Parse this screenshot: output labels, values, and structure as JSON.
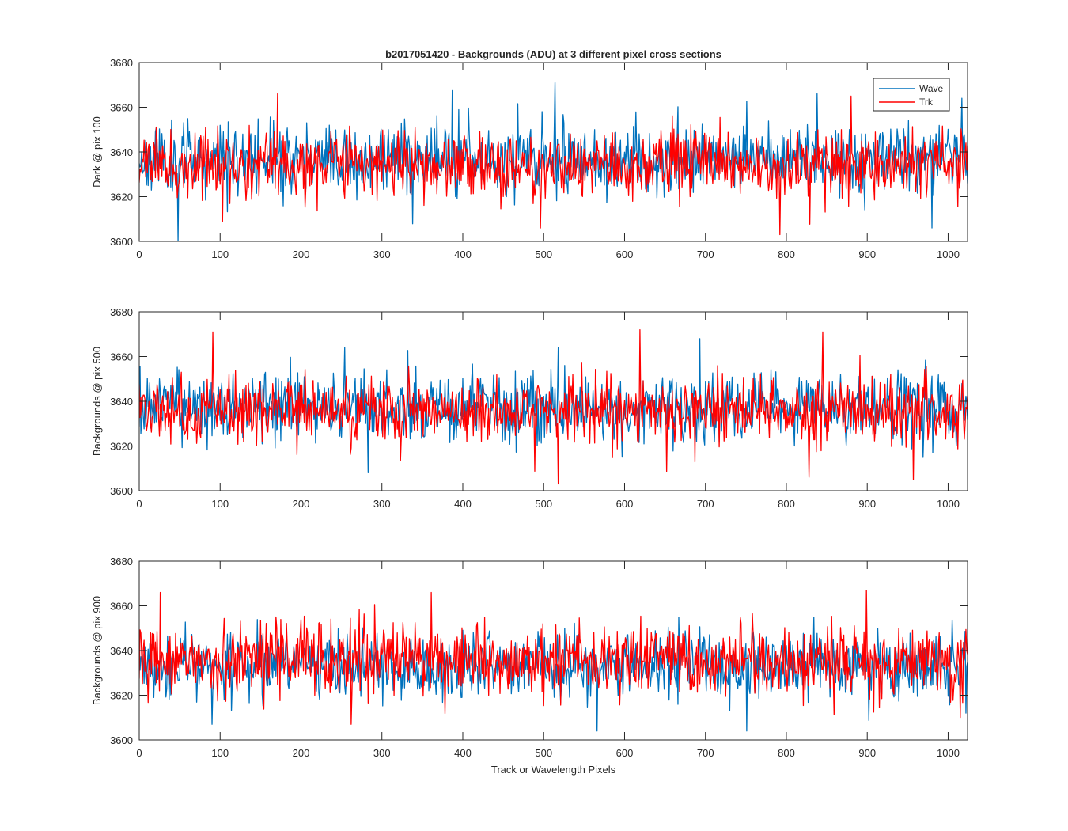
{
  "chart_data": [
    {
      "type": "line",
      "title": "b2017051420 - Backgrounds (ADU) at 3 different pixel cross sections",
      "xlabel": "",
      "ylabel": "Dark @ pix 100",
      "xlim": [
        0,
        1024
      ],
      "ylim": [
        3600,
        3680
      ],
      "x_ticks": [
        "0",
        "100",
        "200",
        "300",
        "400",
        "500",
        "600",
        "700",
        "800",
        "900",
        "1000"
      ],
      "y_ticks": [
        "3600",
        "3620",
        "3640",
        "3660",
        "3680"
      ],
      "legend": {
        "position": "top-right",
        "entries": [
          "Wave",
          "Trk"
        ]
      },
      "series": [
        {
          "name": "Wave",
          "color": "#0072BD",
          "mean": 3637,
          "std": 7.5,
          "seed": 11,
          "extremes": [
            [
              48,
              3600
            ],
            [
              514,
              3671
            ],
            [
              1017,
              3664
            ],
            [
              980,
              3606
            ],
            [
              838,
              3666
            ]
          ]
        },
        {
          "name": "Trk",
          "color": "#FF0000",
          "mean": 3634,
          "std": 7.0,
          "seed": 23,
          "extremes": [
            [
              171,
              3666
            ],
            [
              496,
              3606
            ],
            [
              792,
              3603
            ],
            [
              880,
              3665
            ],
            [
              103,
              3609
            ]
          ]
        }
      ]
    },
    {
      "type": "line",
      "title": "",
      "xlabel": "",
      "ylabel": "Backgrounds @ pix 500",
      "xlim": [
        0,
        1024
      ],
      "ylim": [
        3600,
        3680
      ],
      "x_ticks": [
        "0",
        "100",
        "200",
        "300",
        "400",
        "500",
        "600",
        "700",
        "800",
        "900",
        "1000"
      ],
      "y_ticks": [
        "3600",
        "3620",
        "3640",
        "3660",
        "3680"
      ],
      "series": [
        {
          "name": "Wave",
          "color": "#0072BD",
          "mean": 3637,
          "std": 7.5,
          "seed": 37,
          "extremes": [
            [
              254,
              3664
            ],
            [
              518,
              3664
            ],
            [
              693,
              3668
            ],
            [
              283,
              3608
            ],
            [
              1010,
              3620
            ]
          ]
        },
        {
          "name": "Trk",
          "color": "#FF0000",
          "mean": 3636,
          "std": 7.0,
          "seed": 41,
          "extremes": [
            [
              91,
              3671
            ],
            [
              619,
              3672
            ],
            [
              845,
              3671
            ],
            [
              518,
              3603
            ],
            [
              957,
              3605
            ],
            [
              828,
              3606
            ]
          ]
        }
      ]
    },
    {
      "type": "line",
      "title": "",
      "xlabel": "Track or Wavelength Pixels",
      "ylabel": "Backgrounds @ pix 900",
      "xlim": [
        0,
        1024
      ],
      "ylim": [
        3600,
        3680
      ],
      "x_ticks": [
        "0",
        "100",
        "200",
        "300",
        "400",
        "500",
        "600",
        "700",
        "800",
        "900",
        "1000"
      ],
      "y_ticks": [
        "3600",
        "3620",
        "3640",
        "3660",
        "3680"
      ],
      "series": [
        {
          "name": "Wave",
          "color": "#0072BD",
          "mean": 3633,
          "std": 7.0,
          "seed": 53,
          "extremes": [
            [
              566,
              3604
            ],
            [
              751,
              3604
            ],
            [
              90,
              3607
            ],
            [
              1022,
              3612
            ]
          ]
        },
        {
          "name": "Trk",
          "color": "#FF0000",
          "mean": 3635,
          "std": 7.5,
          "seed": 67,
          "extremes": [
            [
              26,
              3666
            ],
            [
              361,
              3666
            ],
            [
              899,
              3667
            ],
            [
              262,
              3607
            ]
          ]
        }
      ]
    }
  ]
}
